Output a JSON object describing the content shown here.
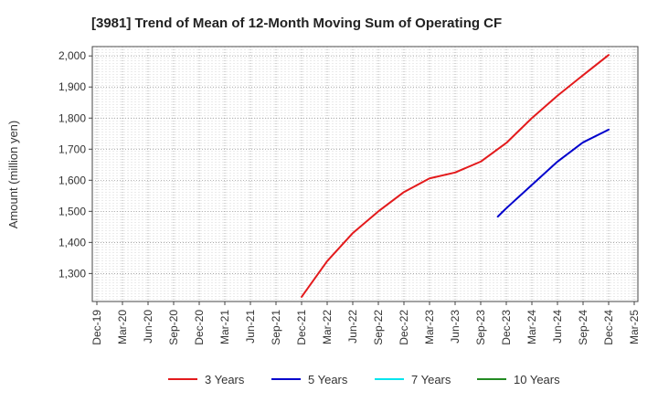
{
  "chart_data": {
    "type": "line",
    "title": "[3981]  Trend of Mean of 12-Month Moving Sum of Operating CF",
    "xlabel": "",
    "ylabel": "Amount (million yen)",
    "x_ticks": [
      "Dec-19",
      "Mar-20",
      "Jun-20",
      "Sep-20",
      "Dec-20",
      "Mar-21",
      "Jun-21",
      "Sep-21",
      "Dec-21",
      "Mar-22",
      "Jun-22",
      "Sep-22",
      "Dec-22",
      "Mar-23",
      "Jun-23",
      "Sep-23",
      "Dec-23",
      "Mar-24",
      "Jun-24",
      "Sep-24",
      "Dec-24",
      "Mar-25"
    ],
    "y_ticks": [
      1300,
      1400,
      1500,
      1600,
      1700,
      1800,
      1900,
      2000
    ],
    "ylim": [
      1210,
      2030
    ],
    "grid": true,
    "legend_position": "bottom",
    "series": [
      {
        "name": "3 Years",
        "color": "#e31a1c",
        "points": [
          {
            "x": "Dec-21",
            "y": 1225
          },
          {
            "x": "Mar-22",
            "y": 1340
          },
          {
            "x": "Jun-22",
            "y": 1430
          },
          {
            "x": "Sep-22",
            "y": 1500
          },
          {
            "x": "Dec-22",
            "y": 1562
          },
          {
            "x": "Mar-23",
            "y": 1606
          },
          {
            "x": "Jun-23",
            "y": 1625
          },
          {
            "x": "Sep-23",
            "y": 1660
          },
          {
            "x": "Dec-23",
            "y": 1720
          },
          {
            "x": "Mar-24",
            "y": 1800
          },
          {
            "x": "Jun-24",
            "y": 1872
          },
          {
            "x": "Sep-24",
            "y": 1938
          },
          {
            "x": "Dec-24",
            "y": 2003
          }
        ]
      },
      {
        "name": "5 Years",
        "color": "#0000cc",
        "points": [
          {
            "x": "Nov-23",
            "y": 1483
          },
          {
            "x": "Dec-23",
            "y": 1510
          },
          {
            "x": "Mar-24",
            "y": 1585
          },
          {
            "x": "Jun-24",
            "y": 1660
          },
          {
            "x": "Sep-24",
            "y": 1722
          },
          {
            "x": "Dec-24",
            "y": 1763
          }
        ]
      },
      {
        "name": "7 Years",
        "color": "#00e5ee",
        "points": []
      },
      {
        "name": "10 Years",
        "color": "#228b22",
        "points": []
      }
    ]
  }
}
